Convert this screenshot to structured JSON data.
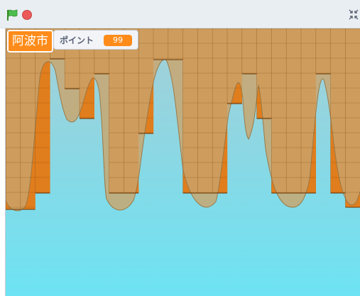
{
  "controls": {
    "flag_icon": "green-flag-icon",
    "stop_icon": "stop-icon",
    "fullscreen_icon": "fullscreen-icon"
  },
  "stage": {
    "city_label": "阿波市",
    "point_monitor": {
      "label": "ポイント",
      "value": "99"
    }
  },
  "colors": {
    "block_fill": "#e07d1c",
    "grid_line": "#8a4a0c",
    "ghost_fill": "#c7a26a",
    "sky_top": "#9ccfd9",
    "sky_bottom": "#6fe2f2"
  }
}
